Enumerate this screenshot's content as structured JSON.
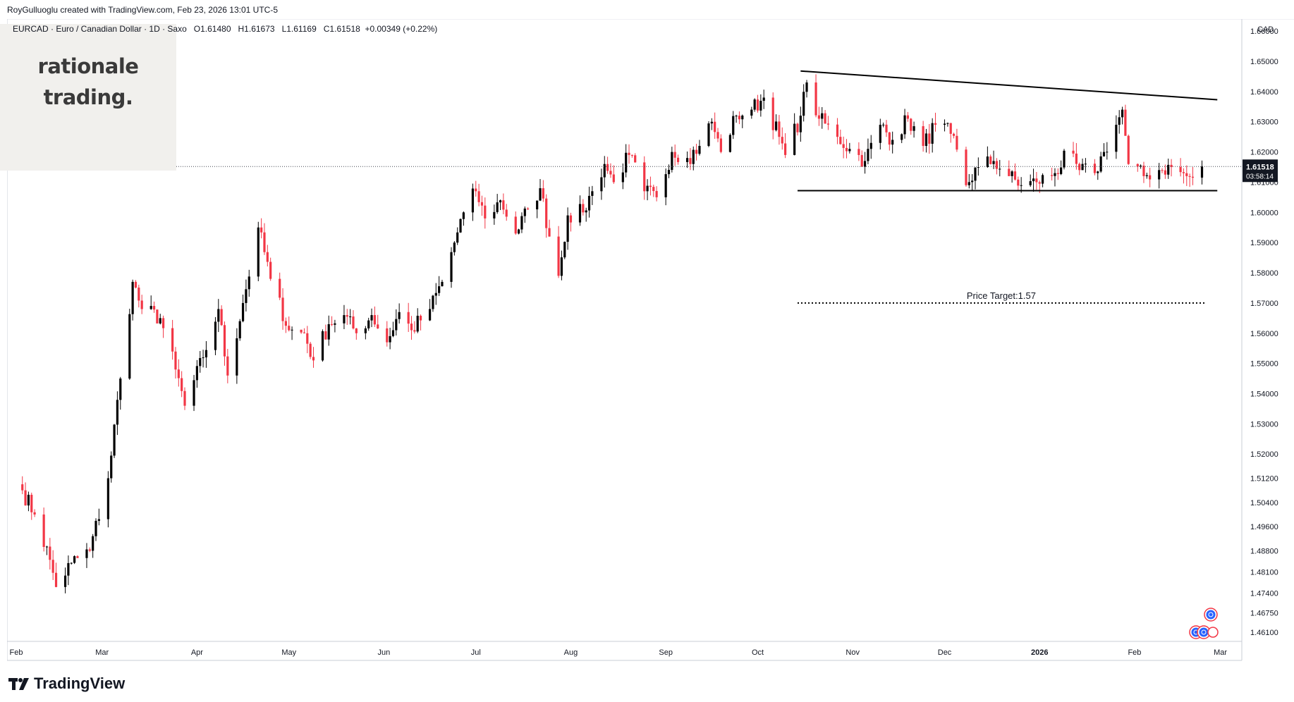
{
  "header": {
    "credit": "RoyGulluoglu created with TradingView.com, Feb 23, 2026 13:01 UTC-5"
  },
  "logo": {
    "line1": "rationale",
    "line2": "trading."
  },
  "legend": {
    "symbol": "EURCAD · Euro / Canadian Dollar · 1D · Saxo",
    "open": "O1.61480",
    "high": "H1.61673",
    "low": "L1.61169",
    "close": "C1.61518",
    "change": "+0.00349 (+0.22%)"
  },
  "footer": {
    "brand": "TradingView"
  },
  "chart_data": {
    "type": "candlestick",
    "currency": "CAD",
    "ylim": [
      1.458,
      1.664
    ],
    "y_ticks": [
      "1.66000",
      "1.65000",
      "1.64000",
      "1.63000",
      "1.62000",
      "1.61000",
      "1.60000",
      "1.59000",
      "1.58000",
      "1.57000",
      "1.56000",
      "1.55000",
      "1.54000",
      "1.53000",
      "1.52000",
      "1.51200",
      "1.50400",
      "1.49600",
      "1.48800",
      "1.48100",
      "1.47400",
      "1.46750",
      "1.46100"
    ],
    "x_ticks": [
      "Feb",
      "Mar",
      "Apr",
      "May",
      "Jun",
      "Jul",
      "Aug",
      "Sep",
      "Oct",
      "Nov",
      "Dec",
      "2026",
      "Feb",
      "Mar"
    ],
    "last_price": {
      "value": "1.61518",
      "countdown": "03:58:14"
    },
    "anchors": [
      [
        "2025-02-03",
        1.508
      ],
      [
        "2025-02-07",
        1.5
      ],
      [
        "2025-02-12",
        1.485
      ],
      [
        "2025-02-14",
        1.476
      ],
      [
        "2025-02-19",
        1.484
      ],
      [
        "2025-02-25",
        1.488
      ],
      [
        "2025-03-03",
        1.512
      ],
      [
        "2025-03-07",
        1.545
      ],
      [
        "2025-03-11",
        1.577
      ],
      [
        "2025-03-14",
        1.568
      ],
      [
        "2025-03-20",
        1.565
      ],
      [
        "2025-03-25",
        1.548
      ],
      [
        "2025-03-28",
        1.536
      ],
      [
        "2025-04-03",
        1.552
      ],
      [
        "2025-04-08",
        1.568
      ],
      [
        "2025-04-11",
        1.546
      ],
      [
        "2025-04-16",
        1.57
      ],
      [
        "2025-04-21",
        1.595
      ],
      [
        "2025-04-25",
        1.578
      ],
      [
        "2025-05-01",
        1.561
      ],
      [
        "2025-05-06",
        1.56
      ],
      [
        "2025-05-09",
        1.551
      ],
      [
        "2025-05-14",
        1.563
      ],
      [
        "2025-05-19",
        1.566
      ],
      [
        "2025-05-23",
        1.56
      ],
      [
        "2025-05-28",
        1.566
      ],
      [
        "2025-06-02",
        1.557
      ],
      [
        "2025-06-06",
        1.567
      ],
      [
        "2025-06-10",
        1.561
      ],
      [
        "2025-06-16",
        1.568
      ],
      [
        "2025-06-20",
        1.577
      ],
      [
        "2025-06-24",
        1.59
      ],
      [
        "2025-06-27",
        1.6
      ],
      [
        "2025-07-01",
        1.607
      ],
      [
        "2025-07-04",
        1.598
      ],
      [
        "2025-07-09",
        1.604
      ],
      [
        "2025-07-14",
        1.593
      ],
      [
        "2025-07-18",
        1.601
      ],
      [
        "2025-07-22",
        1.608
      ],
      [
        "2025-07-25",
        1.592
      ],
      [
        "2025-07-28",
        1.579
      ],
      [
        "2025-07-31",
        1.599
      ],
      [
        "2025-08-05",
        1.6
      ],
      [
        "2025-08-08",
        1.607
      ],
      [
        "2025-08-12",
        1.616
      ],
      [
        "2025-08-15",
        1.61
      ],
      [
        "2025-08-20",
        1.619
      ],
      [
        "2025-08-25",
        1.607
      ],
      [
        "2025-08-29",
        1.605
      ],
      [
        "2025-09-03",
        1.62
      ],
      [
        "2025-09-08",
        1.618
      ],
      [
        "2025-09-12",
        1.622
      ],
      [
        "2025-09-16",
        1.63
      ],
      [
        "2025-09-19",
        1.62
      ],
      [
        "2025-09-24",
        1.632
      ],
      [
        "2025-09-29",
        1.634
      ],
      [
        "2025-10-03",
        1.638
      ],
      [
        "2025-10-08",
        1.625
      ],
      [
        "2025-10-10",
        1.619
      ],
      [
        "2025-10-15",
        1.632
      ],
      [
        "2025-10-17",
        1.643
      ],
      [
        "2025-10-21",
        1.631
      ],
      [
        "2025-10-27",
        1.625
      ],
      [
        "2025-10-31",
        1.621
      ],
      [
        "2025-11-05",
        1.617
      ],
      [
        "2025-11-10",
        1.629
      ],
      [
        "2025-11-14",
        1.624
      ],
      [
        "2025-11-19",
        1.631
      ],
      [
        "2025-11-24",
        1.622
      ],
      [
        "2025-11-28",
        1.629
      ],
      [
        "2025-12-03",
        1.626
      ],
      [
        "2025-12-08",
        1.609
      ],
      [
        "2025-12-12",
        1.615
      ],
      [
        "2025-12-17",
        1.617
      ],
      [
        "2025-12-22",
        1.612
      ],
      [
        "2025-12-26",
        1.609
      ],
      [
        "2025-12-31",
        1.61
      ],
      [
        "2026-01-06",
        1.613
      ],
      [
        "2026-01-10",
        1.619
      ],
      [
        "2026-01-14",
        1.614
      ],
      [
        "2026-01-19",
        1.613
      ],
      [
        "2026-01-22",
        1.62
      ],
      [
        "2026-01-26",
        1.629
      ],
      [
        "2026-01-28",
        1.634
      ],
      [
        "2026-01-30",
        1.616
      ],
      [
        "2026-02-04",
        1.612
      ],
      [
        "2026-02-09",
        1.614
      ],
      [
        "2026-02-13",
        1.615
      ],
      [
        "2026-02-18",
        1.612
      ],
      [
        "2026-02-20",
        1.6115
      ],
      [
        "2026-02-23",
        1.61518
      ]
    ],
    "trendlines": [
      {
        "from": [
          "2025-10-15",
          1.6468
        ],
        "to": [
          "2026-02-28",
          1.6373
        ]
      },
      {
        "from": [
          "2025-10-14",
          1.6072
        ],
        "to": [
          "2026-02-28",
          1.6072
        ]
      }
    ],
    "price_target": {
      "label": "Price Target:1.57",
      "value": 1.57,
      "from": "2025-10-14",
      "to": "2026-02-24"
    }
  }
}
